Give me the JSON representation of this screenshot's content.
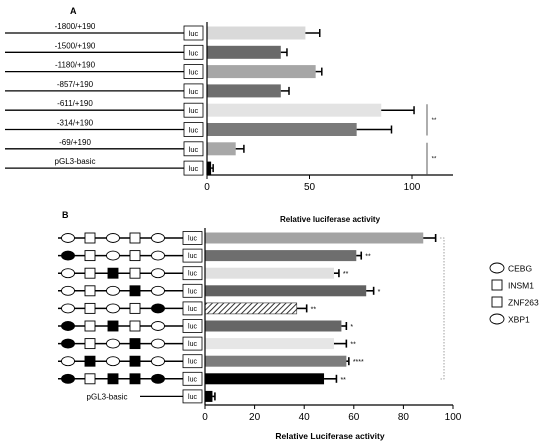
{
  "chart_data": [
    {
      "panel_label": "A",
      "type": "bar",
      "orientation": "horizontal",
      "categories": [
        "-1800/+190",
        "-1500/+190",
        "-1180/+190",
        "-857/+190",
        "-611/+190",
        "-314/+190",
        "-69/+190",
        "pGL3-basic"
      ],
      "values": [
        48,
        36,
        53,
        36,
        85,
        73,
        14,
        2
      ],
      "errors": [
        7,
        3,
        3,
        4,
        16,
        17,
        4,
        1
      ],
      "bar_colors": [
        "#d9d9d9",
        "#696969",
        "#a6a6a6",
        "#6e6e6e",
        "#e3e3e3",
        "#7a7a7a",
        "#a8a8a8",
        "#000000"
      ],
      "reporter_label": "luc",
      "xlim": [
        0,
        120
      ],
      "xticks": [
        0,
        50,
        100
      ],
      "xlabel": "Relative luciferase activity",
      "significance": [
        {
          "from": 4,
          "to": 5,
          "label": "**"
        },
        {
          "from": 6,
          "to": 7,
          "label": "**"
        }
      ]
    },
    {
      "panel_label": "B",
      "type": "bar",
      "orientation": "horizontal",
      "categories": [
        "",
        "",
        "",
        "",
        "",
        "",
        "",
        "",
        "",
        "pGL3-basic"
      ],
      "values": [
        88,
        61,
        52,
        65,
        37,
        55,
        52,
        57,
        48,
        3
      ],
      "errors": [
        5,
        2,
        2,
        3,
        4,
        2,
        5,
        1,
        5,
        1
      ],
      "bar_colors": [
        "#a3a3a3",
        "#6e6e6e",
        "#e0e0e0",
        "#616161",
        "hatch",
        "#666666",
        "#e6e6e6",
        "#7d7d7d",
        "#000000",
        "#000000"
      ],
      "significance_labels": [
        "",
        "**",
        "**",
        "*",
        "**",
        "*",
        "**",
        "****",
        "**",
        ""
      ],
      "construct_sites": [
        [
          "C",
          "I",
          "C",
          "I",
          "C",
          "X"
        ],
        [
          "F",
          "I",
          "C",
          "I",
          "C",
          "X"
        ],
        [
          "C",
          "I",
          "S",
          "I",
          "C",
          "X"
        ],
        [
          "C",
          "I",
          "C",
          "S",
          "C",
          "X"
        ],
        [
          "C",
          "I",
          "C",
          "I",
          "F",
          "X"
        ],
        [
          "F",
          "I",
          "S",
          "I",
          "C",
          "X"
        ],
        [
          "F",
          "I",
          "C",
          "S",
          "C",
          "X"
        ],
        [
          "C",
          "S",
          "C",
          "S",
          "C",
          "X"
        ],
        [
          "F",
          "I",
          "S",
          "S",
          "F",
          "X"
        ],
        []
      ],
      "reporter_label": "luc",
      "xlim": [
        0,
        100
      ],
      "xticks": [
        0,
        20,
        40,
        60,
        80,
        100
      ],
      "xlabel": "Relative Luciferase activity",
      "legend": [
        {
          "shape": "ellipse",
          "label": "CEBG"
        },
        {
          "shape": "square",
          "label": "INSM1"
        },
        {
          "shape": "square",
          "label": "ZNF263"
        },
        {
          "shape": "ellipse",
          "label": "XBP1"
        }
      ],
      "legend_position": "right"
    }
  ]
}
